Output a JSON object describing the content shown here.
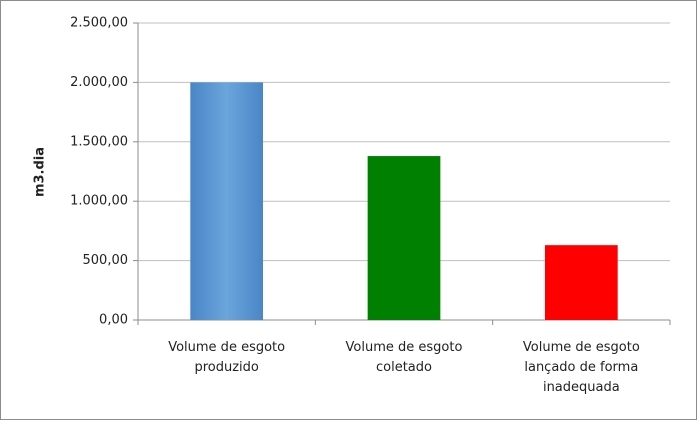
{
  "chart_data": {
    "type": "bar",
    "y_label": "m3.dia",
    "categories": [
      "Volume de esgoto produzido",
      "Volume de esgoto coletado",
      "Volume de esgoto lançado de forma inadequada"
    ],
    "values": [
      2000,
      1380,
      630
    ],
    "colors": [
      "#5b9bd5",
      "#008000",
      "#ff0000"
    ],
    "ylim": [
      0,
      2500
    ],
    "yticks": [
      {
        "value": 0,
        "label": "0,00"
      },
      {
        "value": 500,
        "label": "500,00"
      },
      {
        "value": 1000,
        "label": "1.000,00"
      },
      {
        "value": 1500,
        "label": "1.500,00"
      },
      {
        "value": 2000,
        "label": "2.000,00"
      },
      {
        "value": 2500,
        "label": "2.500,00"
      }
    ],
    "grid": true
  }
}
